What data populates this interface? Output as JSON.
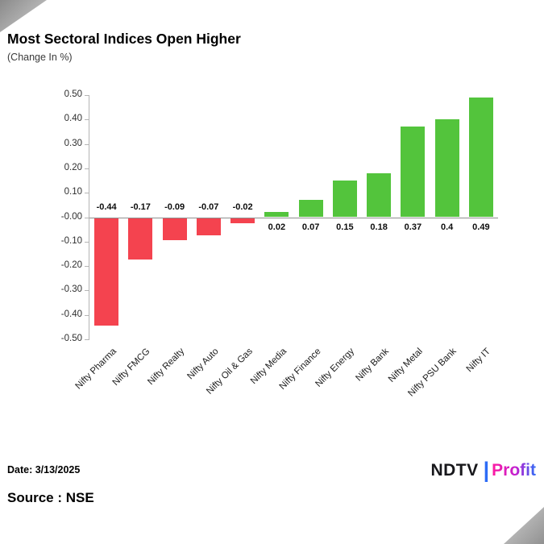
{
  "header": {
    "title": "Most Sectoral Indices Open Higher",
    "subtitle": "(Change In %)"
  },
  "chart_data": {
    "type": "bar",
    "title": "Most Sectoral Indices Open Higher",
    "subtitle": "(Change In %)",
    "categories": [
      "Nifty Pharma",
      "Nifty FMCG",
      "Nifty Realty",
      "Nifty Auto",
      "Nifty Oil & Gas",
      "Nifty Media",
      "Nifty Finance",
      "Nifty Energy",
      "Nifty Bank",
      "Nifty Metal",
      "Nifty PSU Bank",
      "Nifty IT"
    ],
    "values": [
      -0.44,
      -0.17,
      -0.09,
      -0.07,
      -0.02,
      0.02,
      0.07,
      0.15,
      0.18,
      0.37,
      0.4,
      0.49
    ],
    "labels": [
      "-0.44",
      "-0.17",
      "-0.09",
      "-0.07",
      "-0.02",
      "0.02",
      "0.07",
      "0.15",
      "0.18",
      "0.37",
      "0.4",
      "0.49"
    ],
    "ylim": [
      -0.5,
      0.5
    ],
    "yticks": [
      "0.50",
      "0.40",
      "0.30",
      "0.20",
      "0.10",
      "-0.00",
      "-0.10",
      "-0.20",
      "-0.30",
      "-0.40",
      "-0.50"
    ],
    "grid": false,
    "legend": "none",
    "xlabel": "",
    "ylabel": "",
    "colors": {
      "positive": "#53c43c",
      "negative": "#f4434f"
    }
  },
  "footer": {
    "date_label": "Date: 3/13/2025",
    "source_label": "Source : NSE",
    "logo": {
      "ndtv": "NDTV",
      "separator": "|",
      "profit": "Profit"
    }
  }
}
